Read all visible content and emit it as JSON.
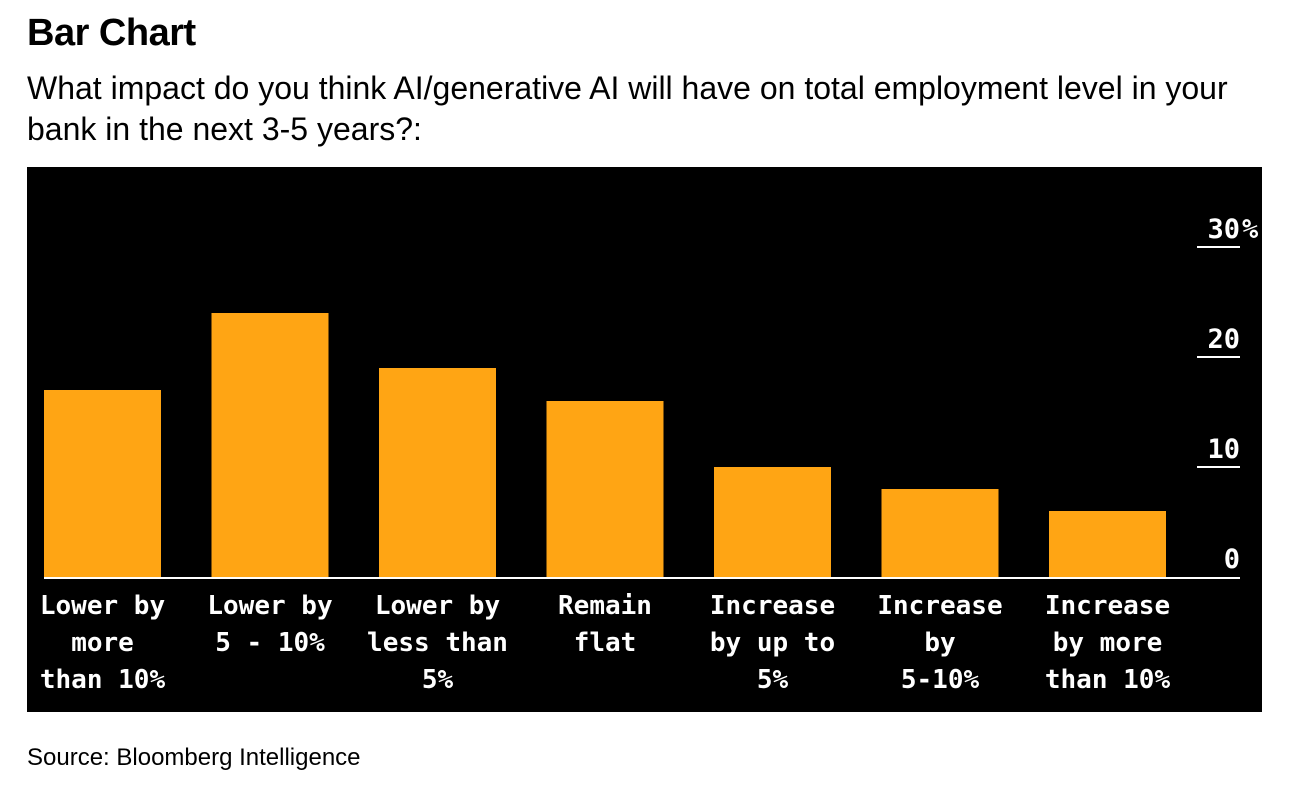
{
  "heading": "Bar Chart",
  "source": "Source: Bloomberg Intelligence",
  "chart_data": {
    "type": "bar",
    "title": "What impact do you think AI/generative AI will have on total employment level in your bank in the next 3-5 years?:",
    "categories": [
      "Lower by more than 10%",
      "Lower by 5 - 10%",
      "Lower by less than 5%",
      "Remain flat",
      "Increase by up to 5%",
      "Increase by 5-10%",
      "Increase by more than 10%"
    ],
    "category_lines": [
      [
        "Lower by",
        "more",
        "than 10%"
      ],
      [
        "Lower by",
        "5 - 10%"
      ],
      [
        "Lower by",
        "less than",
        "5%"
      ],
      [
        "Remain",
        "flat"
      ],
      [
        "Increase",
        "by up to",
        "5%"
      ],
      [
        "Increase",
        "by",
        "5-10%"
      ],
      [
        "Increase",
        "by more",
        "than 10%"
      ]
    ],
    "values": [
      17,
      24,
      19,
      16,
      10,
      8,
      6
    ],
    "ylim": [
      0,
      30
    ],
    "yticks": [
      0,
      10,
      20,
      30
    ],
    "ytick_labels": [
      "0",
      "10",
      "20",
      "30"
    ],
    "y_unit": "%",
    "axis_side": "right",
    "grid": false,
    "colors": {
      "bar": "#FFA514",
      "background": "#000000",
      "text": "#FFFFFF"
    }
  }
}
